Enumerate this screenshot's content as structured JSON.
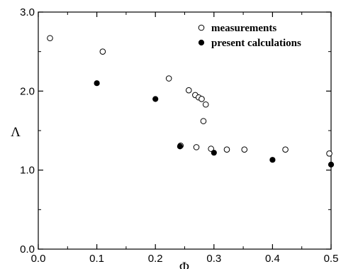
{
  "chart_data": {
    "type": "scatter",
    "xlabel": "Φ",
    "ylabel": "Λ",
    "xlim": [
      0.0,
      0.5
    ],
    "ylim": [
      0.0,
      3.0
    ],
    "xticks": [
      "0.0",
      "0.1",
      "0.2",
      "0.3",
      "0.4",
      "0.5"
    ],
    "yticks": [
      "0.0",
      "1.0",
      "2.0",
      "3.0"
    ],
    "legend_position": "top-right",
    "grid": false,
    "series": [
      {
        "name": "measurements",
        "marker": "open-circle",
        "color": "#000000",
        "x": [
          0.02,
          0.11,
          0.223,
          0.257,
          0.268,
          0.274,
          0.279,
          0.282,
          0.286,
          0.243,
          0.27,
          0.295,
          0.322,
          0.352,
          0.422,
          0.497
        ],
        "y": [
          2.67,
          2.5,
          2.16,
          2.01,
          1.95,
          1.92,
          1.9,
          1.62,
          1.83,
          1.31,
          1.29,
          1.27,
          1.26,
          1.26,
          1.26,
          1.21
        ]
      },
      {
        "name": "present calculations",
        "marker": "filled-circle",
        "color": "#000000",
        "x": [
          0.1,
          0.2,
          0.242,
          0.3,
          0.4,
          0.5
        ],
        "y": [
          2.1,
          1.9,
          1.3,
          1.22,
          1.13,
          1.07
        ]
      }
    ]
  }
}
